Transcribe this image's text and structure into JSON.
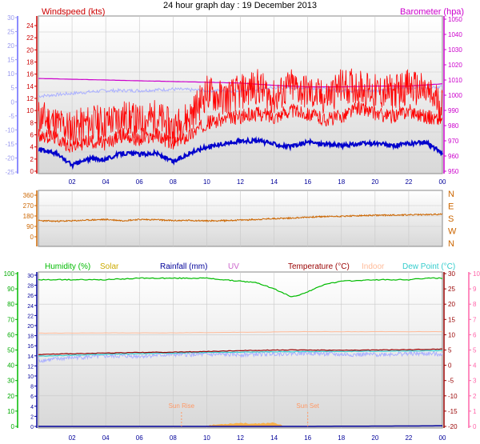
{
  "title": "24 hour graph day : 19 December 2013",
  "x_ticks": [
    "02",
    "04",
    "06",
    "08",
    "10",
    "12",
    "14",
    "16",
    "18",
    "20",
    "22",
    "00"
  ],
  "colors": {
    "wind": "#ff0000",
    "gust": "#ff0000",
    "avg_wind": "#0000cc",
    "baro": "#cc00cc",
    "temp": "#990000",
    "dew": "#33cccc",
    "hum": "#00bb00",
    "indoor": "#ffbb99",
    "dir": "#cc6600",
    "solar": "#ffaa33",
    "rain": "#000099",
    "uv": "#cc66cc",
    "pale": "#aab0ff"
  },
  "chart_data": [
    {
      "type": "line",
      "title": "",
      "left_label": "Windspeed (kts)",
      "right_label": "Barometer (hpa)",
      "left_axis_ticks": [
        "0",
        "2",
        "4",
        "6",
        "8",
        "10",
        "12",
        "14",
        "16",
        "18",
        "20",
        "22",
        "24"
      ],
      "outer_left_ticks": [
        "-25",
        "-20",
        "-15",
        "-10",
        "-5",
        "0",
        "5",
        "10",
        "15",
        "20",
        "25",
        "30"
      ],
      "right_axis_ticks": [
        "950",
        "960",
        "970",
        "980",
        "990",
        "1000",
        "1010",
        "1020",
        "1030",
        "1040",
        "1050"
      ],
      "x_range": [
        0,
        24
      ],
      "series": [
        {
          "name": "Windspeed (kts)",
          "x": [
            0,
            1,
            2,
            3,
            4,
            5,
            6,
            7,
            8,
            9,
            10,
            11,
            12,
            13,
            14,
            15,
            16,
            17,
            18,
            19,
            20,
            21,
            22,
            23,
            24
          ],
          "y": [
            6,
            5.5,
            4,
            5,
            4.5,
            6,
            5,
            6,
            4.5,
            6,
            8,
            8.5,
            9,
            9.5,
            9,
            10,
            9.5,
            8.5,
            9,
            10.5,
            9.5,
            9,
            10,
            9,
            8.5
          ]
        },
        {
          "name": "Gust (kts)",
          "x": [
            0,
            1,
            2,
            3,
            4,
            5,
            6,
            7,
            8,
            9,
            10,
            11,
            12,
            13,
            14,
            15,
            16,
            17,
            18,
            19,
            20,
            21,
            22,
            23,
            24
          ],
          "y": [
            9,
            8,
            7,
            8,
            8,
            9,
            8,
            9,
            7,
            9,
            13,
            12,
            13,
            14,
            12,
            14,
            13,
            12,
            14,
            14,
            13,
            13,
            14,
            13,
            11
          ]
        },
        {
          "name": "Average wind (kts)",
          "x": [
            0,
            1,
            2,
            3,
            4,
            5,
            6,
            7,
            8,
            9,
            10,
            11,
            12,
            13,
            14,
            15,
            16,
            17,
            18,
            19,
            20,
            21,
            22,
            23,
            24
          ],
          "y": [
            3.5,
            3,
            1,
            2,
            2,
            3,
            2.8,
            3,
            1.5,
            3,
            4,
            4.5,
            5,
            5,
            4.5,
            4,
            4.8,
            4.5,
            4.2,
            4.5,
            4.6,
            4.2,
            4.5,
            4.8,
            3
          ]
        },
        {
          "name": "Barometer (hpa)",
          "x": [
            0,
            2,
            4,
            6,
            8,
            10,
            12,
            14,
            16,
            18,
            20,
            22,
            24
          ],
          "y": [
            1011,
            1010.5,
            1010,
            1009.5,
            1009,
            1008.5,
            1008,
            1006.5,
            1005.5,
            1005.5,
            1006,
            1006,
            1007.5
          ]
        },
        {
          "name": "Pale trace (outer)",
          "x": [
            0,
            2,
            4,
            6,
            8,
            10,
            12,
            14,
            16,
            18,
            20,
            22,
            24
          ],
          "y": [
            2,
            3,
            4,
            4,
            4.5,
            4,
            4,
            5,
            5,
            4,
            4,
            5,
            5.5
          ]
        }
      ]
    },
    {
      "type": "line",
      "title": "",
      "left_axis_ticks": [
        "0",
        "90",
        "180",
        "270",
        "360"
      ],
      "right_axis_ticks": [
        "N",
        "E",
        "S",
        "W",
        "N"
      ],
      "x_range": [
        0,
        24
      ],
      "ylim": [
        0,
        360
      ],
      "series": [
        {
          "name": "Wind direction",
          "x": [
            0,
            1,
            2,
            3,
            4,
            5,
            6,
            7,
            8,
            9,
            10,
            11,
            12,
            13,
            14,
            15,
            16,
            17,
            18,
            19,
            20,
            21,
            22,
            23,
            24
          ],
          "y": [
            140,
            135,
            138,
            145,
            150,
            140,
            150,
            148,
            140,
            142,
            138,
            140,
            145,
            150,
            158,
            162,
            170,
            175,
            178,
            182,
            186,
            188,
            190,
            192,
            195
          ]
        }
      ]
    },
    {
      "type": "line",
      "title": "",
      "legend": [
        "Humidity (%)",
        "Solar",
        "Rainfall (mm)",
        "UV",
        "Temperature (°C)",
        "Indoor",
        "Dew Point (°C)"
      ],
      "humidity_ticks": [
        "0",
        "10",
        "20",
        "30",
        "40",
        "50",
        "60",
        "70",
        "80",
        "90",
        "100"
      ],
      "left2_ticks": [
        "0",
        "2",
        "4",
        "6",
        "8",
        "10",
        "12",
        "14",
        "16",
        "18",
        "20",
        "22",
        "24",
        "26",
        "28",
        "30"
      ],
      "temp_ticks": [
        "-20",
        "-15",
        "-10",
        "-5",
        "0",
        "5",
        "10",
        "15",
        "20",
        "25",
        "30"
      ],
      "far_right_ticks": [
        "0",
        "1",
        "2",
        "3",
        "4",
        "5",
        "6",
        "7",
        "8",
        "9",
        "10"
      ],
      "x_range": [
        0,
        24
      ],
      "annotations": [
        "Sun Rise",
        "Sun Set"
      ],
      "series": [
        {
          "name": "Humidity (%)",
          "x": [
            0,
            2,
            4,
            6,
            8,
            10,
            11,
            12,
            13,
            14,
            15,
            15.5,
            16,
            17,
            18,
            20,
            22,
            23,
            24
          ],
          "y": [
            96,
            96,
            96,
            97,
            97,
            97,
            96,
            95,
            94,
            90,
            85,
            86,
            88,
            93,
            95,
            96,
            96,
            97,
            97
          ]
        },
        {
          "name": "Temperature (°C)",
          "x": [
            0,
            2,
            4,
            6,
            8,
            10,
            12,
            14,
            16,
            18,
            20,
            22,
            24
          ],
          "y": [
            3.5,
            3.8,
            4,
            4.2,
            4.3,
            4.5,
            4.8,
            5,
            5,
            4.9,
            5,
            5.1,
            5.3
          ]
        },
        {
          "name": "Dew Point (°C)",
          "x": [
            0,
            2,
            4,
            6,
            8,
            10,
            12,
            14,
            16,
            18,
            20,
            22,
            24
          ],
          "y": [
            3,
            3.3,
            3.6,
            3.8,
            4,
            4.2,
            4.3,
            4.4,
            4.5,
            4.5,
            4.6,
            4.7,
            4.8
          ]
        },
        {
          "name": "Indoor",
          "x": [
            0,
            4,
            8,
            12,
            16,
            20,
            24
          ],
          "y": [
            10.5,
            10.6,
            10.6,
            10.8,
            11,
            11,
            11
          ]
        },
        {
          "name": "Pale trace (lower)",
          "x": [
            0,
            2,
            4,
            6,
            8,
            10,
            12,
            14,
            16,
            18,
            20,
            22,
            24
          ],
          "y": [
            1.5,
            2.5,
            3,
            3,
            3.5,
            3.5,
            3.5,
            3.8,
            4,
            3.5,
            3.5,
            3.8,
            3.7
          ]
        },
        {
          "name": "Solar",
          "x": [
            10,
            11,
            12,
            13,
            14,
            14.5
          ],
          "y": [
            0.5,
            1.5,
            2.2,
            1.5,
            2.5,
            0.3
          ]
        },
        {
          "name": "Rainfall (mm)",
          "x": [
            0,
            16,
            20,
            23,
            24
          ],
          "y": [
            0,
            0,
            0.2,
            0.3,
            0.4
          ]
        }
      ]
    }
  ]
}
